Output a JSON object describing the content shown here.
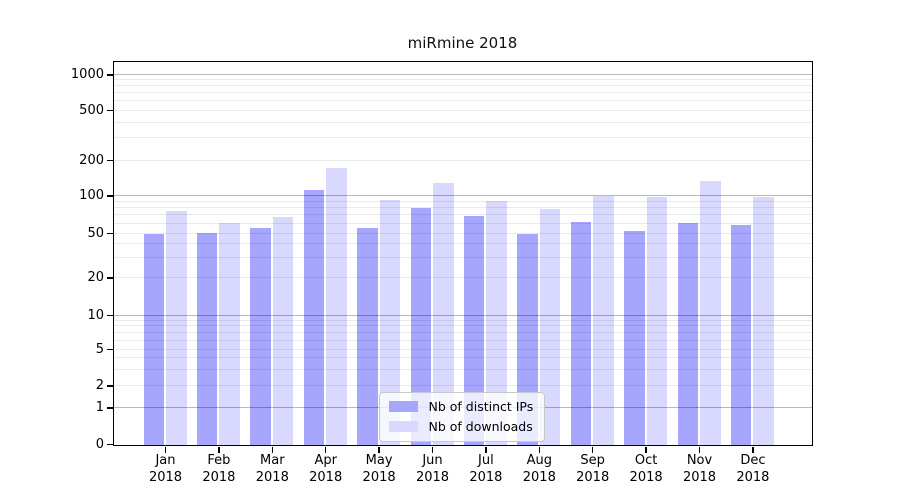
{
  "figure": {
    "title": "miRmine 2018"
  },
  "y_axis": {
    "tick_labels": [
      "1000",
      "500",
      "200",
      "100",
      "50",
      "20",
      "10",
      "5",
      "2",
      "1",
      "0"
    ]
  },
  "x_axis": {
    "months": [
      "Jan",
      "Feb",
      "Mar",
      "Apr",
      "May",
      "Jun",
      "Jul",
      "Aug",
      "Sep",
      "Oct",
      "Nov",
      "Dec"
    ],
    "year": "2018"
  },
  "legend": {
    "items": [
      {
        "label": "Nb of distinct IPs"
      },
      {
        "label": "Nb of downloads"
      }
    ]
  },
  "chart_data": {
    "type": "bar",
    "title": "miRmine 2018",
    "categories": [
      "Jan 2018",
      "Feb 2018",
      "Mar 2018",
      "Apr 2018",
      "May 2018",
      "Jun 2018",
      "Jul 2018",
      "Aug 2018",
      "Sep 2018",
      "Oct 2018",
      "Nov 2018",
      "Dec 2018"
    ],
    "series": [
      {
        "name": "Nb of distinct IPs",
        "color": "#a6a6ff",
        "values": [
          50,
          51,
          56,
          114,
          56,
          81,
          70,
          50,
          62,
          53,
          61,
          59
        ]
      },
      {
        "name": "Nb of downloads",
        "color": "#d9d9ff",
        "values": [
          76,
          61,
          69,
          173,
          94,
          130,
          92,
          80,
          102,
          100,
          135,
          100
        ]
      }
    ],
    "ylabel": "",
    "xlabel": "",
    "yscale": "log-like (0 shown at baseline)",
    "yticks": [
      0,
      1,
      2,
      5,
      10,
      20,
      50,
      100,
      200,
      500,
      1000
    ],
    "ylim": [
      0,
      1000
    ],
    "grid": true,
    "legend_position": "inside lower-center"
  }
}
